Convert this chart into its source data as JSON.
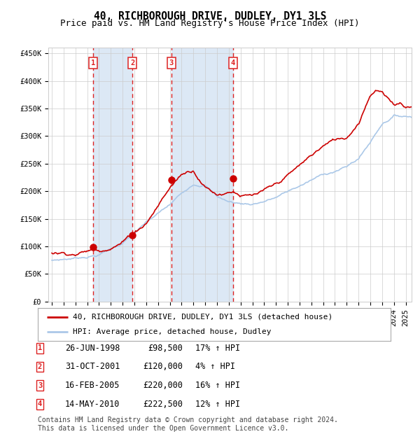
{
  "title": "40, RICHBOROUGH DRIVE, DUDLEY, DY1 3LS",
  "subtitle": "Price paid vs. HM Land Registry's House Price Index (HPI)",
  "ylim": [
    0,
    460000
  ],
  "yticks": [
    0,
    50000,
    100000,
    150000,
    200000,
    250000,
    300000,
    350000,
    400000,
    450000
  ],
  "ytick_labels": [
    "£0",
    "£50K",
    "£100K",
    "£150K",
    "£200K",
    "£250K",
    "£300K",
    "£350K",
    "£400K",
    "£450K"
  ],
  "hpi_color": "#abc8e8",
  "price_color": "#cc0000",
  "marker_color": "#cc0000",
  "vline_color": "#dd2222",
  "shade_color": "#dce8f5",
  "grid_color": "#cccccc",
  "background_color": "#ffffff",
  "sales": [
    {
      "label": "1",
      "date": "26-JUN-1998",
      "year": 1998.49,
      "price": 98500,
      "pct": "17%",
      "dir": "↑"
    },
    {
      "label": "2",
      "date": "31-OCT-2001",
      "year": 2001.83,
      "price": 120000,
      "pct": "4%",
      "dir": "↑"
    },
    {
      "label": "3",
      "date": "16-FEB-2005",
      "year": 2005.12,
      "price": 220000,
      "pct": "16%",
      "dir": "↑"
    },
    {
      "label": "4",
      "date": "14-MAY-2010",
      "year": 2010.37,
      "price": 222500,
      "pct": "12%",
      "dir": "↑"
    }
  ],
  "legend_line1": "40, RICHBOROUGH DRIVE, DUDLEY, DY1 3LS (detached house)",
  "legend_line2": "HPI: Average price, detached house, Dudley",
  "footer": "Contains HM Land Registry data © Crown copyright and database right 2024.\nThis data is licensed under the Open Government Licence v3.0.",
  "title_fontsize": 10.5,
  "subtitle_fontsize": 9,
  "tick_fontsize": 7.5,
  "legend_fontsize": 8,
  "table_fontsize": 8.5,
  "footer_fontsize": 7,
  "xstart": 1995,
  "xend": 2025.5,
  "hpi_anchors_x": [
    1995,
    1997,
    1999,
    2001,
    2003,
    2005,
    2007,
    2008,
    2009,
    2010,
    2011,
    2012,
    2013,
    2014,
    2016,
    2018,
    2020,
    2021,
    2022,
    2023,
    2024,
    2025
  ],
  "hpi_anchors_y": [
    75000,
    80000,
    88000,
    110000,
    145000,
    175000,
    215000,
    215000,
    195000,
    185000,
    182000,
    182000,
    188000,
    195000,
    215000,
    235000,
    250000,
    265000,
    295000,
    330000,
    345000,
    345000
  ],
  "price_anchors_x": [
    1995,
    1997,
    1998.5,
    1999,
    2001,
    2003,
    2005,
    2006,
    2007,
    2008,
    2009,
    2010,
    2010.5,
    2011,
    2012,
    2013,
    2014,
    2016,
    2018,
    2019,
    2020,
    2021,
    2022,
    2022.5,
    2023,
    2023.5,
    2024,
    2024.5,
    2025
  ],
  "price_anchors_y": [
    88000,
    90000,
    98000,
    96000,
    118000,
    155000,
    220000,
    245000,
    255000,
    228000,
    215000,
    222000,
    225000,
    218000,
    215000,
    220000,
    228000,
    260000,
    295000,
    305000,
    310000,
    340000,
    395000,
    405000,
    400000,
    385000,
    375000,
    380000,
    375000
  ]
}
